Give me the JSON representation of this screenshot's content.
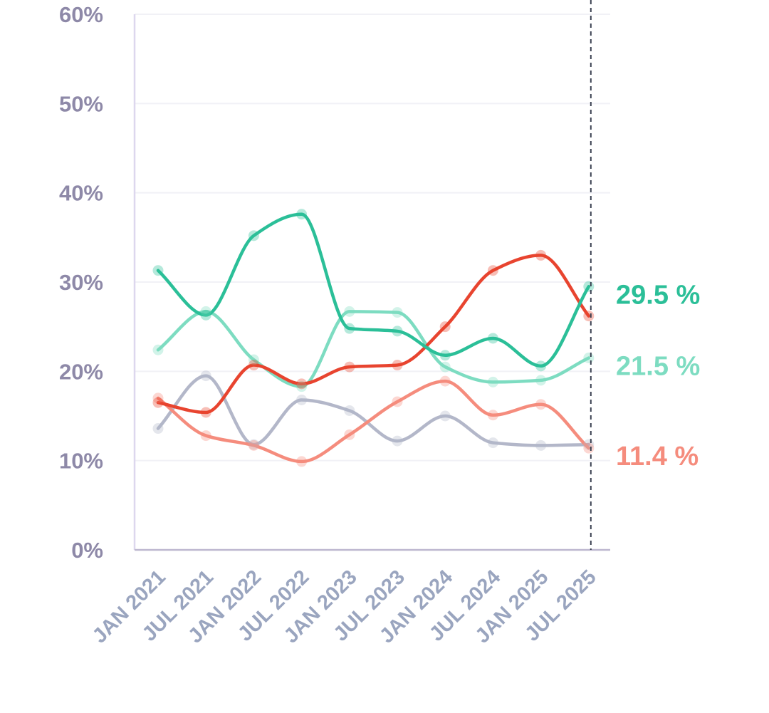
{
  "chart_data": {
    "type": "line",
    "title": "",
    "xlabel": "",
    "ylabel": "",
    "ylim": [
      0,
      60
    ],
    "y_ticks": [
      "0%",
      "10%",
      "20%",
      "30%",
      "40%",
      "50%",
      "60%"
    ],
    "y_tick_values": [
      0,
      10,
      20,
      30,
      40,
      50,
      60
    ],
    "categories": [
      "JAN 2021",
      "JUL 2021",
      "JAN 2022",
      "JUL 2022",
      "JAN 2023",
      "JUL 2023",
      "JAN 2024",
      "JUL 2024",
      "JAN 2025",
      "JUL 2025"
    ],
    "grid": true,
    "series": [
      {
        "name": "series-dark-green",
        "color": "#2bbf98",
        "values": [
          31.3,
          26.3,
          35.2,
          37.6,
          24.8,
          24.5,
          21.8,
          23.7,
          20.6,
          29.5
        ],
        "end_label": "29.5 %"
      },
      {
        "name": "series-light-green",
        "color": "#7ddcc1",
        "values": [
          22.4,
          26.7,
          21.3,
          18.3,
          26.7,
          26.6,
          20.5,
          18.8,
          19.0,
          21.5
        ],
        "end_label": "21.5 %"
      },
      {
        "name": "series-red",
        "color": "#e8442f",
        "values": [
          16.5,
          15.4,
          20.7,
          18.6,
          20.5,
          20.7,
          25.0,
          31.3,
          33.0,
          26.2
        ],
        "end_label": ""
      },
      {
        "name": "series-salmon",
        "color": "#f58c7d",
        "values": [
          17.0,
          12.8,
          11.7,
          9.9,
          12.9,
          16.6,
          18.9,
          15.1,
          16.3,
          11.4
        ],
        "end_label": "11.4 %"
      },
      {
        "name": "series-gray",
        "color": "#b3b7c9",
        "values": [
          13.6,
          19.5,
          11.8,
          16.8,
          15.6,
          12.2,
          15.0,
          12.0,
          11.7,
          11.8
        ],
        "end_label": ""
      }
    ]
  }
}
